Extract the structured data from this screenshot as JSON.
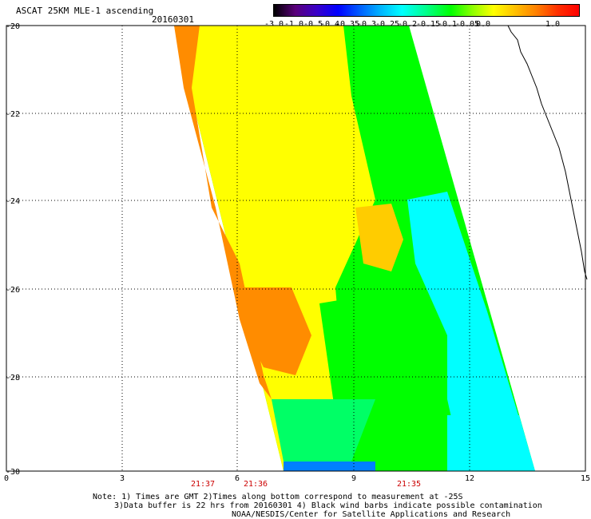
{
  "title": "ASCAT 25KM MLE-1 ascending",
  "date": "20160301",
  "colorbar": {
    "labels": [
      "-3.0",
      "-1.0",
      "-0.5",
      "-0.4",
      "-0.35",
      "-0.3",
      "-0.25",
      "-0.2",
      "-0.15",
      "-0.1",
      "-0.05",
      "0.0",
      "1.0"
    ]
  },
  "axes": {
    "y_labels": [
      "-20",
      "-22",
      "-24",
      "-26",
      "-28",
      "-30"
    ],
    "x_labels": [
      "0",
      "3",
      "6",
      "9",
      "12",
      "15"
    ]
  },
  "times": [
    "21:37",
    "21:36",
    "21:35"
  ],
  "notes": {
    "line1": "Note: 1) Times are GMT 2)Times along bottom correspond to measurement at -25S",
    "line2": "3)Data buffer is 22 hrs from 20160301 4) Black wind barbs indicate possible contamination",
    "line3": "NOAA/NESDIS/Center for Satellite Applications and Research"
  },
  "colors": {
    "orange": "#ff8c00",
    "yellow": "#ffff00",
    "green": "#00ff00",
    "cyan": "#00ffff",
    "blue": "#0080ff",
    "grid": "#000000",
    "coast": "#000000"
  }
}
